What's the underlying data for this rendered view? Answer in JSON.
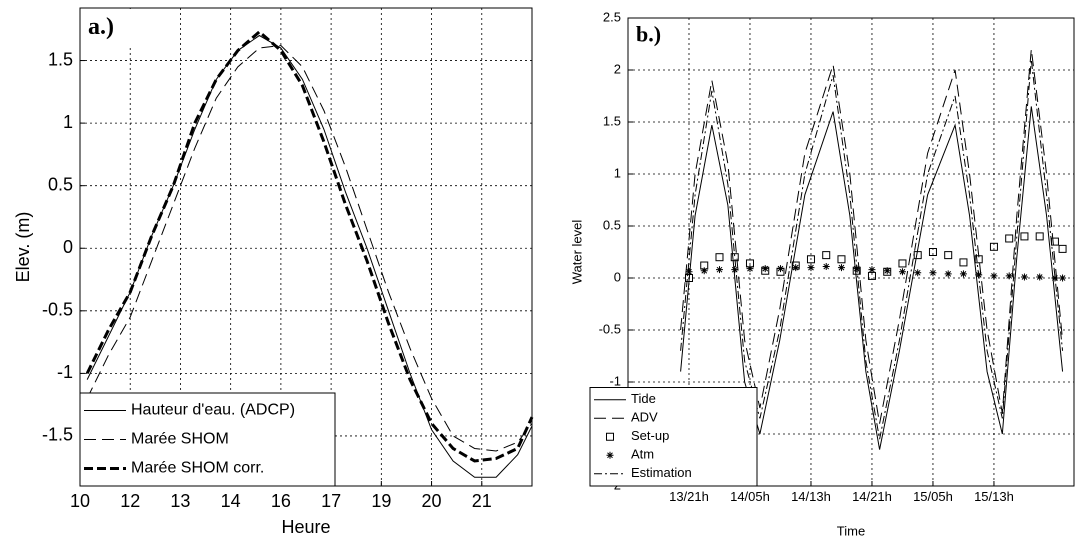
{
  "chart_data": [
    {
      "type": "line",
      "panel_label": "a.)",
      "xlabel": "Heure",
      "ylabel": "Elev. (m)",
      "xlim": [
        10.2,
        22.8
      ],
      "ylim": [
        -1.9,
        1.92
      ],
      "xticks": [
        {
          "value": 10.2,
          "label": "10"
        },
        {
          "value": 11.6,
          "label": "12"
        },
        {
          "value": 13.0,
          "label": "13"
        },
        {
          "value": 14.4,
          "label": "14"
        },
        {
          "value": 15.8,
          "label": "16"
        },
        {
          "value": 17.2,
          "label": "17"
        },
        {
          "value": 18.6,
          "label": "19"
        },
        {
          "value": 20.0,
          "label": "20"
        },
        {
          "value": 21.4,
          "label": "21"
        }
      ],
      "yticks": [
        -1.5,
        -1,
        -0.5,
        0,
        0.5,
        1,
        1.5
      ],
      "grid": true,
      "legend": "lower left",
      "x": [
        10.4,
        11.0,
        11.6,
        12.2,
        12.8,
        13.4,
        14.0,
        14.6,
        15.2,
        15.8,
        16.4,
        17.0,
        17.6,
        18.2,
        18.8,
        19.4,
        20.0,
        20.6,
        21.2,
        21.8,
        22.4,
        22.8
      ],
      "series": [
        {
          "name": "Hauteur d'eau. (ADCP)",
          "color": "#000000",
          "style": "solid",
          "linewidth": 1,
          "values": [
            -1.05,
            -0.7,
            -0.35,
            0.1,
            0.5,
            0.95,
            1.35,
            1.58,
            1.7,
            1.6,
            1.35,
            0.95,
            0.45,
            0.0,
            -0.5,
            -1.0,
            -1.45,
            -1.7,
            -1.83,
            -1.83,
            -1.65,
            -1.42
          ]
        },
        {
          "name": "Marée SHOM",
          "color": "#000000",
          "style": "dashed",
          "linewidth": 1,
          "values": [
            -1.2,
            -0.85,
            -0.55,
            -0.1,
            0.35,
            0.8,
            1.2,
            1.45,
            1.6,
            1.62,
            1.45,
            1.1,
            0.65,
            0.15,
            -0.35,
            -0.8,
            -1.2,
            -1.5,
            -1.6,
            -1.62,
            -1.55,
            -1.4
          ]
        },
        {
          "name": "Marée SHOM corr.",
          "color": "#000000",
          "style": "dashed",
          "linewidth": 3,
          "values": [
            -1.0,
            -0.65,
            -0.35,
            0.1,
            0.5,
            1.0,
            1.35,
            1.58,
            1.73,
            1.58,
            1.3,
            0.85,
            0.35,
            -0.1,
            -0.6,
            -1.05,
            -1.4,
            -1.6,
            -1.7,
            -1.68,
            -1.6,
            -1.35
          ]
        }
      ]
    },
    {
      "type": "line",
      "panel_label": "b.)",
      "xlabel": "Time",
      "ylabel": "Water level",
      "xlim": [
        0,
        58.5
      ],
      "ylim": [
        -2,
        2.5
      ],
      "xticks": [
        {
          "value": 8,
          "label": "13/21h"
        },
        {
          "value": 16,
          "label": "14/05h"
        },
        {
          "value": 24,
          "label": "14/13h"
        },
        {
          "value": 32,
          "label": "14/21h"
        },
        {
          "value": 40,
          "label": "15/05h"
        },
        {
          "value": 48,
          "label": "15/13h"
        }
      ],
      "yticks": [
        -2,
        -1.5,
        -1,
        -0.5,
        0,
        0.5,
        1,
        1.5,
        2,
        2.5
      ],
      "grid": true,
      "legend": "lower left",
      "x": [
        6.9,
        8.8,
        11,
        13.1,
        15.3,
        17.3,
        19.9,
        23.2,
        26.9,
        29.1,
        31.2,
        33,
        35.6,
        39.3,
        42.9,
        44.8,
        47.1,
        49.1,
        51,
        52.9,
        54.9,
        57
      ],
      "series": [
        {
          "name": "Tide",
          "color": "#000000",
          "style": "solid",
          "linewidth": 1,
          "values": [
            -0.9,
            0.6,
            1.47,
            0.7,
            -1.0,
            -1.5,
            -0.6,
            0.8,
            1.6,
            0.6,
            -0.9,
            -1.65,
            -0.7,
            0.8,
            1.47,
            0.6,
            -0.9,
            -1.5,
            0.2,
            1.65,
            0.6,
            -0.9
          ]
        },
        {
          "name": "ADV",
          "color": "#000000",
          "style": "dashed",
          "linewidth": 1,
          "values": [
            -0.5,
            1.0,
            1.9,
            1.1,
            -0.6,
            -1.25,
            -0.3,
            1.2,
            2.05,
            1.0,
            -0.6,
            -1.4,
            -0.4,
            1.2,
            2.0,
            1.0,
            -0.5,
            -1.3,
            0.6,
            2.2,
            1.0,
            -0.6
          ]
        },
        {
          "name": "Set-up",
          "color": "#000000",
          "marker": "square",
          "x": [
            8,
            10,
            12,
            14,
            16,
            18,
            20,
            22,
            24,
            26,
            28,
            30,
            32,
            34,
            36,
            38,
            40,
            42,
            44,
            46,
            48,
            50,
            52,
            54,
            56,
            57
          ],
          "values": [
            0.0,
            0.12,
            0.2,
            0.2,
            0.14,
            0.07,
            0.06,
            0.12,
            0.18,
            0.22,
            0.18,
            0.07,
            0.02,
            0.06,
            0.14,
            0.22,
            0.25,
            0.22,
            0.15,
            0.18,
            0.3,
            0.38,
            0.4,
            0.4,
            0.35,
            0.28
          ]
        },
        {
          "name": "Atm",
          "color": "#000000",
          "marker": "star",
          "x": [
            8,
            10,
            12,
            14,
            16,
            18,
            20,
            22,
            24,
            26,
            28,
            30,
            32,
            34,
            36,
            38,
            40,
            42,
            44,
            46,
            48,
            50,
            52,
            54,
            56,
            57
          ],
          "values": [
            0.06,
            0.07,
            0.08,
            0.08,
            0.09,
            0.09,
            0.09,
            0.1,
            0.1,
            0.11,
            0.1,
            0.09,
            0.08,
            0.07,
            0.06,
            0.05,
            0.05,
            0.04,
            0.04,
            0.03,
            0.02,
            0.02,
            0.01,
            0.01,
            0.0,
            0.0
          ]
        },
        {
          "name": "Estimation",
          "color": "#000000",
          "style": "dash-dot",
          "linewidth": 1,
          "values": [
            -0.7,
            0.8,
            1.8,
            0.9,
            -0.8,
            -1.35,
            -0.5,
            1.0,
            1.95,
            0.8,
            -0.8,
            -1.55,
            -0.6,
            1.0,
            1.75,
            0.8,
            -0.7,
            -1.35,
            0.4,
            2.1,
            0.8,
            -0.7
          ]
        }
      ]
    }
  ]
}
